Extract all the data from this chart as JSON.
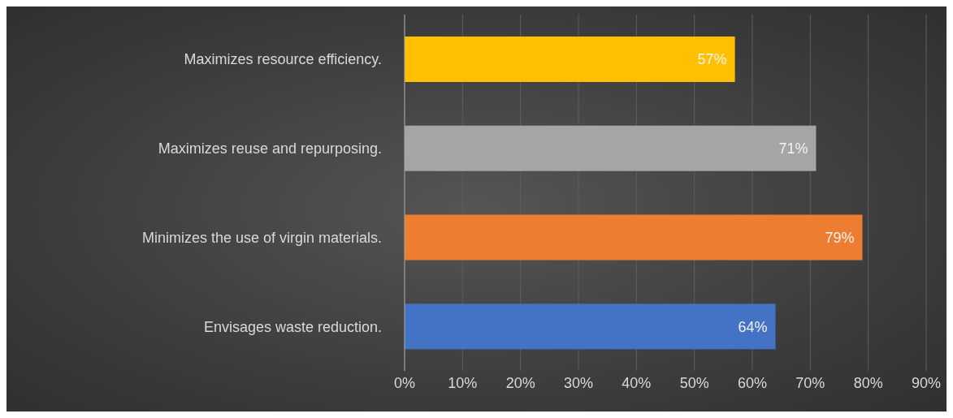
{
  "chart_data": {
    "type": "bar",
    "orientation": "horizontal",
    "categories": [
      "Maximizes resource efficiency.",
      "Maximizes reuse and repurposing.",
      "Minimizes the use of virgin materials.",
      "Envisages waste reduction."
    ],
    "values": [
      57,
      71,
      79,
      64
    ],
    "colors": [
      "#ffc000",
      "#a5a5a5",
      "#ed7d31",
      "#4472c4"
    ],
    "value_labels": [
      "57%",
      "71%",
      "79%",
      "64%"
    ],
    "xlim": [
      0,
      90
    ],
    "xticks": [
      {
        "value": 0,
        "label": "0%"
      },
      {
        "value": 10,
        "label": "10%"
      },
      {
        "value": 20,
        "label": "20%"
      },
      {
        "value": 30,
        "label": "30%"
      },
      {
        "value": 40,
        "label": "40%"
      },
      {
        "value": 50,
        "label": "50%"
      },
      {
        "value": 60,
        "label": "60%"
      },
      {
        "value": 70,
        "label": "70%"
      },
      {
        "value": 80,
        "label": "80%"
      },
      {
        "value": 90,
        "label": "90%"
      }
    ],
    "grid": "x"
  }
}
